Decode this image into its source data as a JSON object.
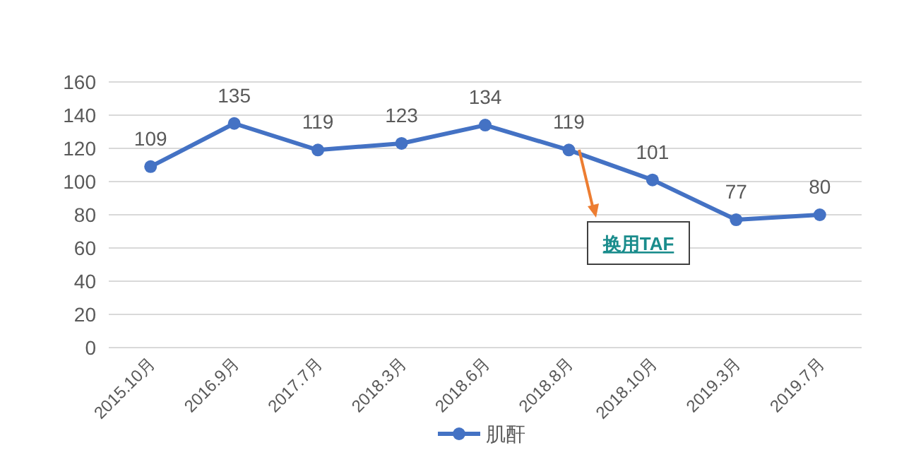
{
  "chart_data": {
    "type": "line",
    "categories": [
      "2015.10月",
      "2016.9月",
      "2017.7月",
      "2018.3月",
      "2018.6月",
      "2018.8月",
      "2018.10月",
      "2019.3月",
      "2019.7月"
    ],
    "series": [
      {
        "name": "肌酐",
        "color": "#4472c4",
        "values": [
          109,
          135,
          119,
          123,
          134,
          119,
          101,
          77,
          80
        ]
      }
    ],
    "ylim": [
      0,
      160
    ],
    "yticks": [
      0,
      20,
      40,
      60,
      80,
      100,
      120,
      140,
      160
    ],
    "grid": "y",
    "legend": "bottom",
    "marker": "circle",
    "data_labels": true,
    "annotations": [
      "换用TAF"
    ]
  }
}
